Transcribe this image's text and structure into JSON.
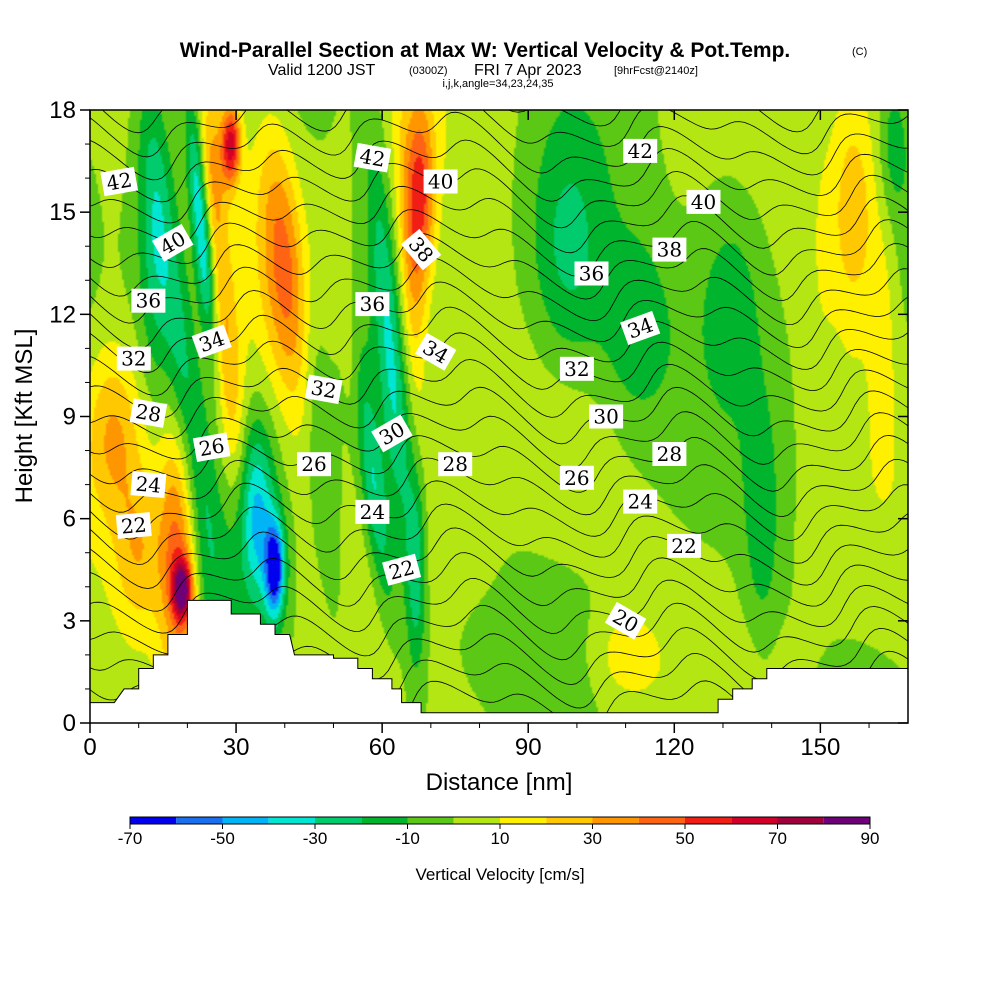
{
  "header": {
    "title": "Wind-Parallel Section at Max W: Vertical Velocity & Pot.Temp.",
    "copyright": "(C)",
    "valid_prefix": "Valid 1200 JST",
    "valid_utc": "(0300Z)",
    "valid_date": "FRI 7 Apr 2023",
    "forecast": "[9hrFcst@2140z]",
    "grid_info": "i,j,k,angle=34,23,24,35"
  },
  "chart_data": {
    "type": "heatmap",
    "title": "Wind-Parallel Section at Max W: Vertical Velocity & Pot.Temp.",
    "xlabel": "Distance [nm]",
    "ylabel": "Height [Kft MSL]",
    "xlim": [
      0,
      168
    ],
    "ylim": [
      0,
      18
    ],
    "x_ticks": [
      "0",
      "30",
      "60",
      "90",
      "120",
      "150"
    ],
    "y_ticks": [
      "0",
      "3",
      "6",
      "9",
      "12",
      "15",
      "18"
    ],
    "x_tick_values": [
      0,
      30,
      60,
      90,
      120,
      150
    ],
    "y_tick_values": [
      0,
      3,
      6,
      9,
      12,
      15,
      18
    ],
    "grid": false,
    "colorbar": {
      "title": "Vertical Velocity [cm/s]",
      "labels": [
        "-70",
        "-50",
        "-30",
        "-10",
        "10",
        "30",
        "50",
        "70",
        "90"
      ],
      "label_values": [
        -70,
        -50,
        -30,
        -10,
        10,
        30,
        50,
        70,
        90
      ],
      "min": -70,
      "max": 90,
      "colors": [
        "#0000ee",
        "#1a6ff0",
        "#00b4f5",
        "#00e6d2",
        "#00cc6e",
        "#00b42d",
        "#5ac814",
        "#b4e614",
        "#fff000",
        "#ffc800",
        "#ff9600",
        "#ff6414",
        "#f01e14",
        "#d20028",
        "#a0003c",
        "#6e0078"
      ],
      "color_levels": [
        -70,
        -60,
        -50,
        -40,
        -30,
        -20,
        -10,
        0,
        10,
        20,
        30,
        40,
        50,
        60,
        70,
        80,
        90
      ]
    },
    "terrain": [
      [
        0,
        0.6
      ],
      [
        5,
        0.6
      ],
      [
        7,
        1.0
      ],
      [
        10,
        1.0
      ],
      [
        10,
        1.6
      ],
      [
        13,
        1.6
      ],
      [
        13,
        2.0
      ],
      [
        16,
        2.0
      ],
      [
        16,
        2.6
      ],
      [
        20,
        2.6
      ],
      [
        20,
        3.6
      ],
      [
        29,
        3.6
      ],
      [
        29,
        3.2
      ],
      [
        35,
        3.2
      ],
      [
        35,
        2.9
      ],
      [
        38,
        2.9
      ],
      [
        38,
        2.6
      ],
      [
        41,
        2.6
      ],
      [
        41,
        2.6
      ],
      [
        42,
        2.0
      ],
      [
        50,
        2.0
      ],
      [
        50,
        1.9
      ],
      [
        55,
        1.9
      ],
      [
        55,
        1.6
      ],
      [
        58,
        1.6
      ],
      [
        58,
        1.3
      ],
      [
        62,
        1.3
      ],
      [
        62,
        1.0
      ],
      [
        64,
        1.0
      ],
      [
        64,
        0.6
      ],
      [
        68,
        0.6
      ],
      [
        68,
        0.3
      ],
      [
        108,
        0.3
      ],
      [
        108,
        0.3
      ],
      [
        129,
        0.3
      ],
      [
        129,
        0.7
      ],
      [
        132,
        0.7
      ],
      [
        132,
        1.0
      ],
      [
        136,
        1.0
      ],
      [
        136,
        1.3
      ],
      [
        139,
        1.3
      ],
      [
        139,
        1.6
      ],
      [
        168,
        1.6
      ]
    ],
    "w_features": [
      {
        "x": 4,
        "y": 14.0,
        "rx": 4,
        "ry": 6.5,
        "angle": 0,
        "w": 5
      },
      {
        "x": 5,
        "y": 8.5,
        "rx": 6,
        "ry": 2.5,
        "angle": 0,
        "w": 25
      },
      {
        "x": 10,
        "y": 5.0,
        "rx": 5,
        "ry": 2.5,
        "angle": 0,
        "w": 25
      },
      {
        "x": 18,
        "y": 5.0,
        "rx": 4,
        "ry": 4.0,
        "angle": 0.0,
        "w": 45
      },
      {
        "x": 19,
        "y": 3.9,
        "rx": 2,
        "ry": 0.9,
        "angle": 0,
        "w": 65
      },
      {
        "x": 13,
        "y": 13.5,
        "rx": 3,
        "ry": 4.5,
        "angle": 0.0,
        "w": -15
      },
      {
        "x": 19,
        "y": 10.5,
        "rx": 4,
        "ry": 8.0,
        "angle": 0.15,
        "w": -30
      },
      {
        "x": 23,
        "y": 14.5,
        "rx": 2,
        "ry": 3.5,
        "angle": 0.1,
        "w": -55
      },
      {
        "x": 25,
        "y": 16.5,
        "rx": 3,
        "ry": 2.5,
        "angle": 0,
        "w": 20
      },
      {
        "x": 29,
        "y": 17.0,
        "rx": 2,
        "ry": 1.2,
        "angle": 0,
        "w": 60
      },
      {
        "x": 28,
        "y": 11.0,
        "rx": 3,
        "ry": 6.0,
        "angle": 0.1,
        "w": 25
      },
      {
        "x": 34,
        "y": 6.0,
        "rx": 4,
        "ry": 2.8,
        "angle": 0,
        "w": -45
      },
      {
        "x": 38,
        "y": 4.5,
        "rx": 2,
        "ry": 1.4,
        "angle": 0,
        "w": -65
      },
      {
        "x": 40,
        "y": 13.5,
        "rx": 5,
        "ry": 4.0,
        "angle": 0.1,
        "w": 40
      },
      {
        "x": 47,
        "y": 9.0,
        "rx": 3,
        "ry": 6.0,
        "angle": 0.1,
        "w": -15
      },
      {
        "x": 54,
        "y": 10.0,
        "rx": 2,
        "ry": 3.5,
        "angle": 0.1,
        "w": 15
      },
      {
        "x": 58,
        "y": 7.0,
        "rx": 3,
        "ry": 4.0,
        "angle": 0.15,
        "w": -35
      },
      {
        "x": 62,
        "y": 10.5,
        "rx": 3,
        "ry": 7.0,
        "angle": 0.1,
        "w": -30
      },
      {
        "x": 66,
        "y": 13.0,
        "rx": 3,
        "ry": 5.0,
        "angle": 0.05,
        "w": 25
      },
      {
        "x": 68,
        "y": 15.5,
        "rx": 3,
        "ry": 2.8,
        "angle": 0,
        "w": 45
      },
      {
        "x": 67,
        "y": 4.5,
        "rx": 2,
        "ry": 3.0,
        "angle": 0,
        "w": -25
      },
      {
        "x": 78,
        "y": 9.0,
        "rx": 6,
        "ry": 6.0,
        "angle": 0,
        "w": 8
      },
      {
        "x": 78,
        "y": 2.5,
        "rx": 7,
        "ry": 1.8,
        "angle": 0,
        "w": -5
      },
      {
        "x": 98,
        "y": 13.5,
        "rx": 8,
        "ry": 3.8,
        "angle": 0,
        "w": -25
      },
      {
        "x": 112,
        "y": 11.5,
        "rx": 8,
        "ry": 3.0,
        "angle": 0,
        "w": -20
      },
      {
        "x": 95,
        "y": 8.0,
        "rx": 10,
        "ry": 3.0,
        "angle": 0,
        "w": 3
      },
      {
        "x": 110,
        "y": 2.0,
        "rx": 6,
        "ry": 1.2,
        "angle": 0,
        "w": 15
      },
      {
        "x": 132,
        "y": 13.0,
        "rx": 8,
        "ry": 3.5,
        "angle": 0,
        "w": -18
      },
      {
        "x": 138,
        "y": 5.5,
        "rx": 4,
        "ry": 4.0,
        "angle": 0,
        "w": -15
      },
      {
        "x": 150,
        "y": 13.0,
        "rx": 3,
        "ry": 4.0,
        "angle": 0,
        "w": 5
      },
      {
        "x": 157,
        "y": 15.0,
        "rx": 5,
        "ry": 3.5,
        "angle": 0,
        "w": 28
      },
      {
        "x": 163,
        "y": 12.0,
        "rx": 3,
        "ry": 3.5,
        "angle": 0,
        "w": 12
      },
      {
        "x": 165,
        "y": 17.0,
        "rx": 3,
        "ry": 2.0,
        "angle": 0,
        "w": -15
      },
      {
        "x": 140,
        "y": 2.0,
        "rx": 10,
        "ry": 1.2,
        "angle": 0,
        "w": 3
      }
    ],
    "theta_levels": [
      19,
      20,
      21,
      22,
      23,
      24,
      25,
      26,
      27,
      28,
      29,
      30,
      31,
      32,
      33,
      34,
      35,
      36,
      37,
      38,
      39,
      40,
      41,
      42,
      43,
      44
    ],
    "theta_labels": [
      {
        "value": "42",
        "x": 6,
        "y": 15.9,
        "rot": 10
      },
      {
        "value": "40",
        "x": 17,
        "y": 14.1,
        "rot": 30
      },
      {
        "value": "36",
        "x": 12,
        "y": 12.4,
        "rot": 0
      },
      {
        "value": "34",
        "x": 25,
        "y": 11.2,
        "rot": 20
      },
      {
        "value": "32",
        "x": 9,
        "y": 10.7,
        "rot": 0
      },
      {
        "value": "28",
        "x": 12,
        "y": 9.1,
        "rot": -10
      },
      {
        "value": "26",
        "x": 25,
        "y": 8.1,
        "rot": 10
      },
      {
        "value": "24",
        "x": 12,
        "y": 7.0,
        "rot": -5
      },
      {
        "value": "22",
        "x": 9,
        "y": 5.8,
        "rot": 5
      },
      {
        "value": "42",
        "x": 58,
        "y": 16.6,
        "rot": -10
      },
      {
        "value": "40",
        "x": 72,
        "y": 15.9,
        "rot": 0
      },
      {
        "value": "38",
        "x": 68,
        "y": 13.9,
        "rot": -50
      },
      {
        "value": "36",
        "x": 58,
        "y": 12.3,
        "rot": 0
      },
      {
        "value": "34",
        "x": 71,
        "y": 10.9,
        "rot": -30
      },
      {
        "value": "32",
        "x": 48,
        "y": 9.8,
        "rot": -10
      },
      {
        "value": "30",
        "x": 62,
        "y": 8.5,
        "rot": 30
      },
      {
        "value": "28",
        "x": 75,
        "y": 7.6,
        "rot": 0
      },
      {
        "value": "26",
        "x": 46,
        "y": 7.6,
        "rot": 0
      },
      {
        "value": "24",
        "x": 58,
        "y": 6.2,
        "rot": 0
      },
      {
        "value": "22",
        "x": 64,
        "y": 4.5,
        "rot": 15
      },
      {
        "value": "42",
        "x": 113,
        "y": 16.8,
        "rot": 0
      },
      {
        "value": "40",
        "x": 126,
        "y": 15.3,
        "rot": 0
      },
      {
        "value": "38",
        "x": 119,
        "y": 13.9,
        "rot": 0
      },
      {
        "value": "36",
        "x": 103,
        "y": 13.2,
        "rot": 0
      },
      {
        "value": "34",
        "x": 113,
        "y": 11.6,
        "rot": 20
      },
      {
        "value": "32",
        "x": 100,
        "y": 10.4,
        "rot": 0
      },
      {
        "value": "30",
        "x": 106,
        "y": 9.0,
        "rot": 0
      },
      {
        "value": "28",
        "x": 119,
        "y": 7.9,
        "rot": 0
      },
      {
        "value": "26",
        "x": 100,
        "y": 7.2,
        "rot": 0
      },
      {
        "value": "24",
        "x": 113,
        "y": 6.5,
        "rot": 0
      },
      {
        "value": "22",
        "x": 122,
        "y": 5.2,
        "rot": 0
      },
      {
        "value": "20",
        "x": 110,
        "y": 3.0,
        "rot": -30
      }
    ]
  }
}
